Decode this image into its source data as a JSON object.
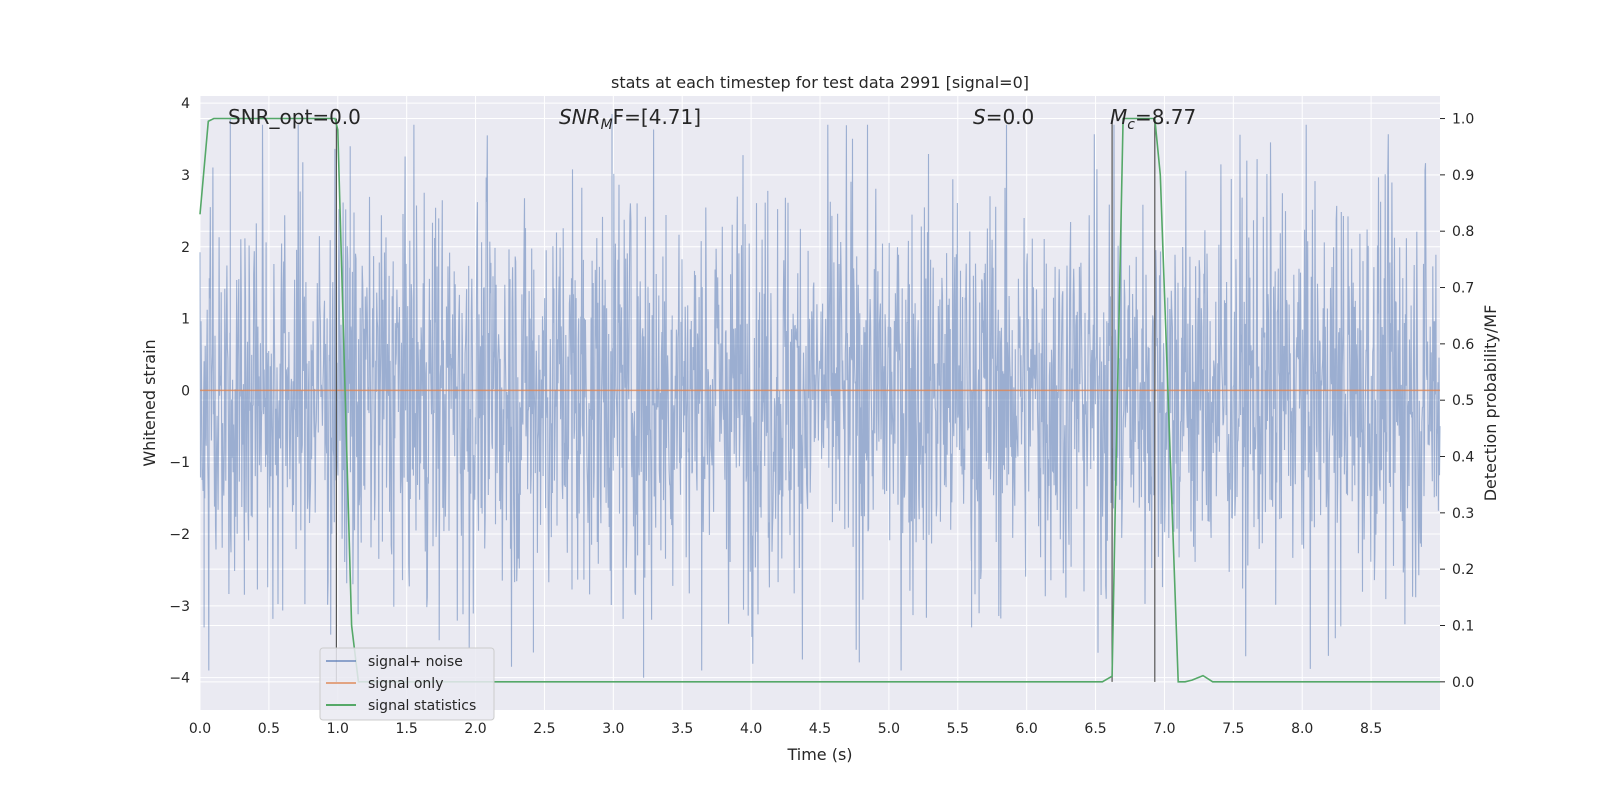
{
  "chart_data": {
    "type": "line",
    "title": "stats at each timestep for test data 2991 [signal=0]",
    "xlabel": "Time (s)",
    "ylabel": "Whitened strain",
    "ylabel_right": "Detection probability/MF",
    "xlim": [
      0,
      9.0
    ],
    "ylim": [
      -4.45,
      4.1
    ],
    "ylim_right": [
      -0.05,
      1.04
    ],
    "x_ticks": [
      0.0,
      0.5,
      1.0,
      1.5,
      2.0,
      2.5,
      3.0,
      3.5,
      4.0,
      4.5,
      5.0,
      5.5,
      6.0,
      6.5,
      7.0,
      7.5,
      8.0,
      8.5
    ],
    "x_tick_labels": [
      "0.0",
      "0.5",
      "1.0",
      "1.5",
      "2.0",
      "2.5",
      "3.0",
      "3.5",
      "4.0",
      "4.5",
      "5.0",
      "5.5",
      "6.0",
      "6.5",
      "7.0",
      "7.5",
      "8.0",
      "8.5"
    ],
    "y_ticks": [
      4,
      3,
      2,
      1,
      0,
      -1,
      -2,
      -3,
      -4
    ],
    "y_tick_labels": [
      "4",
      "3",
      "2",
      "1",
      "0",
      "−1",
      "−2",
      "−3",
      "−4"
    ],
    "y_ticks_right": [
      1.0,
      0.9,
      0.8,
      0.7,
      0.6,
      0.5,
      0.4,
      0.3,
      0.2,
      0.1,
      0.0
    ],
    "y_tick_labels_right": [
      "1.0",
      "0.9",
      "0.8",
      "0.7",
      "0.6",
      "0.5",
      "0.4",
      "0.3",
      "0.2",
      "0.1",
      "0.0"
    ],
    "grid": true,
    "legend": {
      "position": "lower-left",
      "entries": [
        {
          "label": "signal+ noise",
          "color": "#4c72b0"
        },
        {
          "label": "signal only",
          "color": "#dd8452"
        },
        {
          "label": "signal statistics",
          "color": "#55a868"
        }
      ]
    },
    "annotations": {
      "snr_opt": "SNR_opt=0.0",
      "snr_mf_main": "SNR",
      "snr_mf_sub": "M",
      "snr_mf_rest": "F=[4.71]",
      "s_italic": "S",
      "s_rest": "=0.0",
      "mc_main": "M",
      "mc_sub": "c",
      "mc_rest": "=8.77"
    },
    "vertical_markers_x": [
      0.99,
      6.62,
      6.93
    ],
    "series": [
      {
        "name": "signal+ noise",
        "color": "#4c72b0",
        "opacity": 0.5,
        "style": "dense noise, 1-sigma band about 1.4, peaks near 3.8, troughs near -4.0",
        "rms": 1.4,
        "peaks": [
          [
            0.22,
            3.8
          ],
          [
            1.09,
            3.4
          ],
          [
            2.99,
            3.85
          ],
          [
            3.22,
            -4.0
          ],
          [
            2.42,
            -3.65
          ],
          [
            8.24,
            -3.45
          ],
          [
            0.03,
            -3.3
          ],
          [
            5.6,
            -3.3
          ]
        ]
      },
      {
        "name": "signal only",
        "color": "#dd8452",
        "x": [
          0.0,
          9.0
        ],
        "y": [
          0.0,
          0.0
        ]
      },
      {
        "name": "signal statistics",
        "color": "#55a868",
        "axis": "right",
        "x": [
          0.0,
          0.06,
          0.1,
          0.2,
          0.5,
          0.8,
          0.98,
          1.0,
          1.1,
          1.15,
          1.2,
          3.0,
          5.0,
          6.55,
          6.62,
          6.65,
          6.7,
          6.8,
          6.93,
          6.97,
          7.1,
          7.15,
          7.2,
          7.28,
          7.35,
          8.0,
          9.0
        ],
        "y": [
          0.83,
          0.995,
          1.0,
          1.0,
          1.0,
          1.0,
          1.0,
          0.98,
          0.1,
          0.0,
          0.0,
          0.0,
          0.0,
          0.0,
          0.01,
          0.4,
          1.0,
          1.0,
          1.0,
          0.9,
          0.0,
          0.0,
          0.003,
          0.011,
          0.0,
          0.0,
          0.0
        ]
      }
    ]
  }
}
